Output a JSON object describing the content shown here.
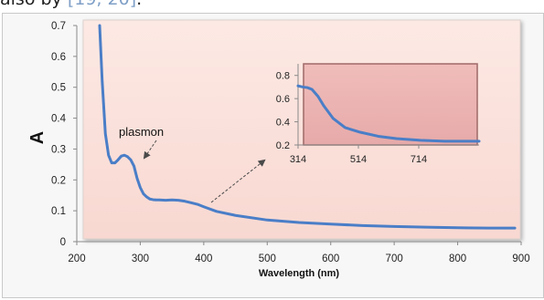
{
  "header_fragment": {
    "prefix": "also by ",
    "citation": "[19, 20]",
    "suffix": "."
  },
  "chart_data": {
    "type": "line",
    "title": "",
    "xlabel": "Wavelength (nm)",
    "ylabel": "A",
    "xlim": [
      200,
      900
    ],
    "ylim": [
      0,
      0.7
    ],
    "grid": false,
    "x_ticks": [
      "200",
      "300",
      "400",
      "500",
      "600",
      "700",
      "800",
      "900"
    ],
    "y_ticks": [
      "0",
      "0.1",
      "0.2",
      "0.3",
      "0.4",
      "0.5",
      "0.6",
      "0.7"
    ],
    "series": [
      {
        "x": [
          236,
          240,
          245,
          250,
          255,
          260,
          265,
          270,
          275,
          280,
          285,
          290,
          295,
          300,
          305,
          310,
          315,
          320,
          325,
          330,
          340,
          350,
          360,
          370,
          380,
          390,
          400,
          420,
          450,
          500,
          550,
          600,
          650,
          700,
          750,
          800,
          850,
          890
        ],
        "y": [
          0.7,
          0.52,
          0.35,
          0.28,
          0.255,
          0.255,
          0.265,
          0.277,
          0.28,
          0.275,
          0.265,
          0.245,
          0.205,
          0.175,
          0.155,
          0.145,
          0.138,
          0.136,
          0.135,
          0.135,
          0.134,
          0.135,
          0.134,
          0.131,
          0.126,
          0.121,
          0.113,
          0.098,
          0.085,
          0.07,
          0.062,
          0.057,
          0.052,
          0.049,
          0.047,
          0.045,
          0.044,
          0.044
        ]
      }
    ],
    "annotations": [
      "plasmon"
    ],
    "inset": {
      "type": "line",
      "xlim": [
        314,
        914
      ],
      "ylim": [
        0.2,
        0.9
      ],
      "x_ticks": [
        "314",
        "514",
        "714"
      ],
      "y_ticks": [
        "0.2",
        "0.4",
        "0.6",
        "0.8"
      ],
      "series": [
        {
          "x": [
            314,
            330,
            345,
            360,
            380,
            400,
            430,
            470,
            520,
            580,
            640,
            720,
            800,
            880,
            914
          ],
          "y": [
            0.71,
            0.7,
            0.695,
            0.68,
            0.62,
            0.535,
            0.43,
            0.35,
            0.31,
            0.275,
            0.255,
            0.24,
            0.232,
            0.232,
            0.232
          ]
        }
      ]
    },
    "colors": {
      "line": "#4a7ec7",
      "plot_background": "#fbe3dd",
      "inset_background": "#e9b2b0",
      "axis": "#8a8a8a"
    }
  }
}
